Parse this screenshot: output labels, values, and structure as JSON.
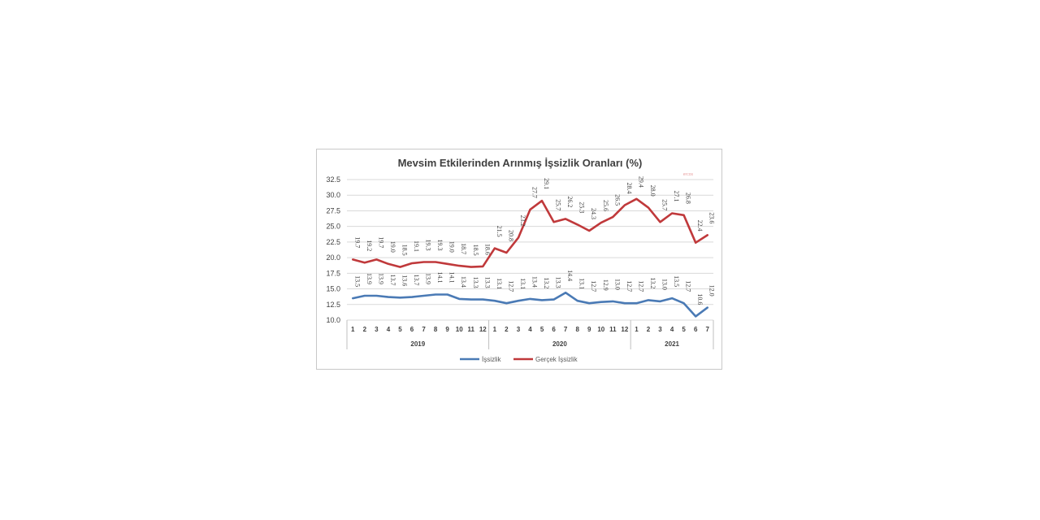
{
  "chart_data": {
    "type": "line",
    "title": "Mevsim Etkilerinden Arınmış İşsizlik Oranları (%)",
    "watermark": "ercos",
    "categories": [
      "1",
      "2",
      "3",
      "4",
      "5",
      "6",
      "7",
      "8",
      "9",
      "10",
      "11",
      "12",
      "1",
      "2",
      "3",
      "4",
      "5",
      "6",
      "7",
      "8",
      "9",
      "10",
      "11",
      "12",
      "1",
      "2",
      "3",
      "4",
      "5",
      "6",
      "7"
    ],
    "groups": [
      {
        "label": "2019",
        "count": 12
      },
      {
        "label": "2020",
        "count": 12
      },
      {
        "label": "2021",
        "count": 7
      }
    ],
    "ylim": [
      10.0,
      32.5
    ],
    "yticks": [
      "10.0",
      "12.5",
      "15.0",
      "17.5",
      "20.0",
      "22.5",
      "25.0",
      "27.5",
      "30.0",
      "32.5"
    ],
    "grid": true,
    "legend_position": "bottom",
    "series": [
      {
        "name": "İşsizlik",
        "color": "#4a7ab5",
        "values": [
          13.5,
          13.9,
          13.9,
          13.7,
          13.6,
          13.7,
          13.9,
          14.1,
          14.1,
          13.4,
          13.3,
          13.3,
          13.1,
          12.7,
          13.1,
          13.4,
          13.2,
          13.3,
          14.4,
          13.1,
          12.7,
          12.9,
          13.0,
          12.7,
          12.7,
          13.2,
          13.0,
          13.5,
          12.7,
          10.6,
          12.0
        ],
        "labels": [
          "13.5",
          "13.9",
          "13.9",
          "13.7",
          "13.6",
          "13.7",
          "13.9",
          "14.1",
          "14.1",
          "13.4",
          "13.3",
          "13.3",
          "13.1",
          "12.7",
          "13.1",
          "13.4",
          "13.2",
          "13.3",
          "14.4",
          "13.1",
          "12.7",
          "12.9",
          "13.0",
          "12.7",
          "12.7",
          "13.2",
          "13.0",
          "13.5",
          "12.7",
          "10.6",
          "12.0"
        ]
      },
      {
        "name": "Gerçek İşsizlik",
        "color": "#c0393b",
        "values": [
          19.7,
          19.2,
          19.7,
          19.0,
          18.5,
          19.1,
          19.3,
          19.3,
          19.0,
          18.7,
          18.5,
          18.6,
          21.5,
          20.8,
          23.2,
          27.7,
          29.1,
          25.7,
          26.2,
          25.3,
          24.3,
          25.6,
          26.5,
          28.4,
          29.4,
          28.0,
          25.7,
          27.1,
          26.8,
          22.4,
          23.6
        ],
        "labels": [
          "19.7",
          "19.2",
          "19.7",
          "19.0",
          "18.5",
          "19.1",
          "19.3",
          "19.3",
          "19.0",
          "18.7",
          "18.5",
          "18.6",
          "21.5",
          "20.8",
          "23.2",
          "27.7",
          "29.1",
          "25.7",
          "26.2",
          "25.3",
          "24.3",
          "25.6",
          "26.5",
          "28.4",
          "29.4",
          "28.0",
          "25.7",
          "27.1",
          "26.8",
          "22.4",
          "23.6"
        ]
      }
    ]
  }
}
